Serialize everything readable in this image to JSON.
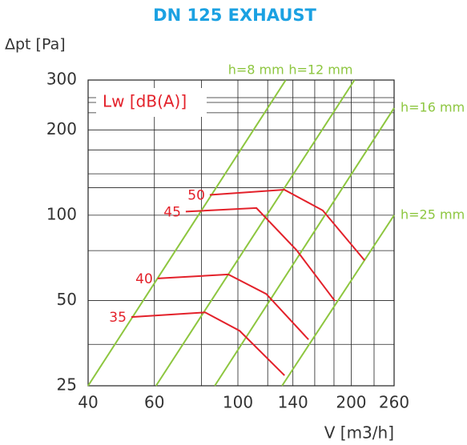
{
  "chart_data": {
    "type": "line",
    "title": "DN 125 EXHAUST",
    "y_label": "Δpt [Pa]",
    "x_label": "V [m3/h]",
    "legend_title": "Lw [dB(A)]",
    "log_x": true,
    "log_y": true,
    "xlim": [
      40,
      260
    ],
    "ylim": [
      25,
      300
    ],
    "xticks": [
      40,
      60,
      100,
      140,
      200,
      260
    ],
    "yticks": [
      25,
      50,
      100,
      200,
      300
    ],
    "xgrid_minor": [
      80,
      120,
      160,
      180,
      230
    ],
    "ygrid_minor": [
      35,
      75,
      125,
      140,
      170,
      230,
      250,
      260
    ],
    "series": [
      {
        "name": "h=8 mm",
        "color": "#8dc63f",
        "x": [
          40,
          134
        ],
        "y": [
          25,
          300
        ]
      },
      {
        "name": "h=12 mm",
        "color": "#8dc63f",
        "x": [
          60.6,
          204
        ],
        "y": [
          25,
          300
        ]
      },
      {
        "name": "h=16 mm",
        "color": "#8dc63f",
        "x": [
          86.8,
          260
        ],
        "y": [
          25,
          239
        ]
      },
      {
        "name": "h=25 mm",
        "color": "#8dc63f",
        "x": [
          131,
          260
        ],
        "y": [
          25,
          100
        ]
      },
      {
        "name": "50",
        "color": "#e3212a",
        "x": [
          84.2,
          132.9,
          168,
          217
        ],
        "y": [
          118,
          123,
          104,
          69.3
        ]
      },
      {
        "name": "45",
        "color": "#e3212a",
        "x": [
          72.7,
          112,
          143,
          181
        ],
        "y": [
          103,
          106,
          75.4,
          49.8
        ]
      },
      {
        "name": "40",
        "color": "#e3212a",
        "x": [
          61.2,
          94.3,
          119,
          154
        ],
        "y": [
          59.8,
          61.8,
          52.7,
          36.4
        ]
      },
      {
        "name": "35",
        "color": "#e3212a",
        "x": [
          52.1,
          81.8,
          101,
          133
        ],
        "y": [
          43.7,
          45.4,
          39.1,
          27.2
        ]
      }
    ]
  }
}
